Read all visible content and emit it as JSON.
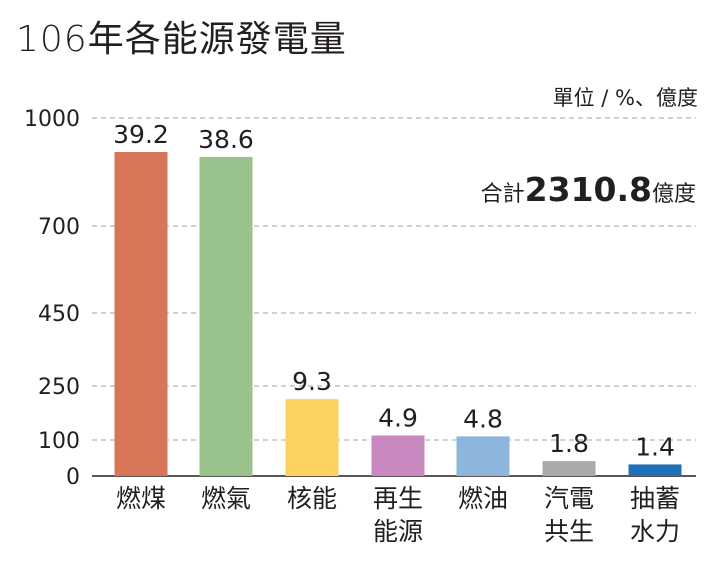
{
  "chart_data": {
    "type": "bar",
    "title": "106年各能源發電量",
    "unit_note": "單位 / %、億度",
    "total": {
      "prefix": "合計",
      "value": "2310.8",
      "suffix": "億度"
    },
    "categories": [
      [
        "燃煤"
      ],
      [
        "燃氣"
      ],
      [
        "核能"
      ],
      [
        "再生",
        "能源"
      ],
      [
        "燃油"
      ],
      [
        "汽電",
        "共生"
      ],
      [
        "抽蓄",
        "水力"
      ]
    ],
    "values": [
      39.2,
      38.6,
      9.3,
      4.9,
      4.8,
      1.8,
      1.4
    ],
    "value_labels": [
      "39.2",
      "38.6",
      "9.3",
      "4.9",
      "4.8",
      "1.8",
      "1.4"
    ],
    "colors": [
      "#d9765a",
      "#99c28c",
      "#fbd25f",
      "#c889c0",
      "#8db6dc",
      "#aaaaaa",
      "#1f70b6"
    ],
    "y_ticks": [
      "0",
      "100",
      "250",
      "450",
      "700",
      "1000"
    ],
    "grid": true
  }
}
